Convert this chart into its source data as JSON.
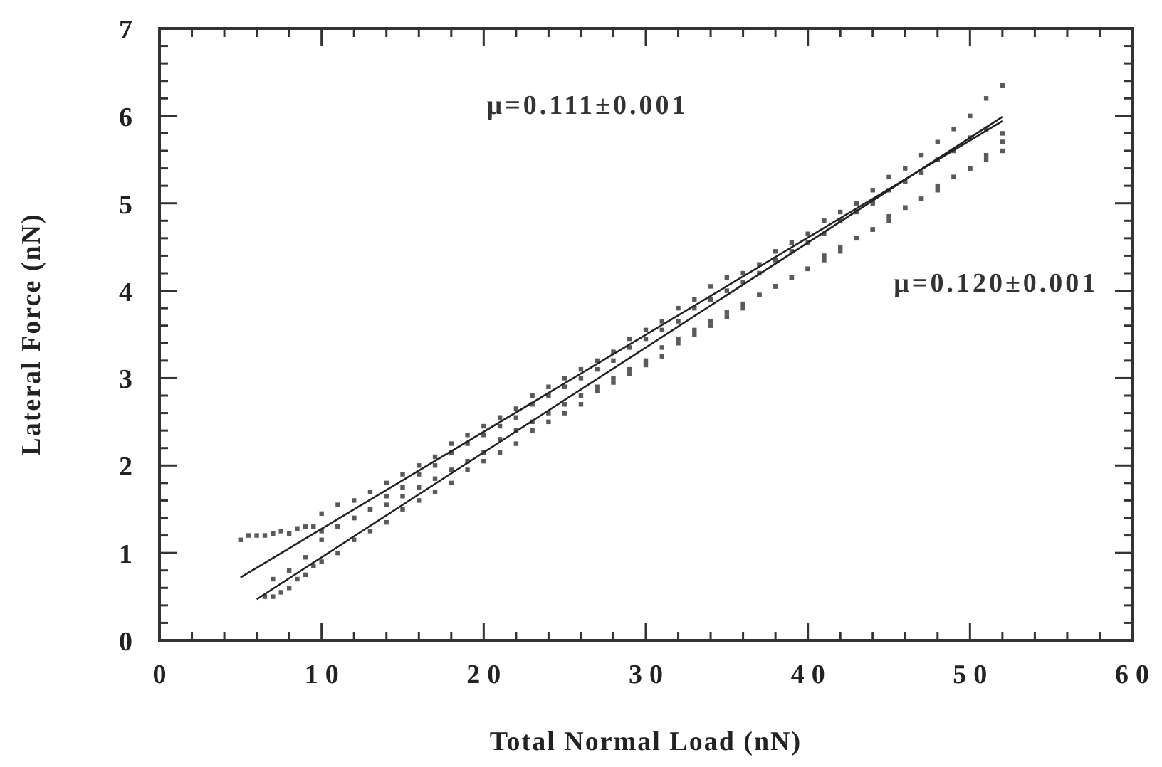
{
  "chart_data": {
    "type": "scatter",
    "xlabel": "Total Normal Load (nN)",
    "ylabel": "Lateral Force (nN)",
    "xlim": [
      0,
      60
    ],
    "ylim": [
      0,
      7
    ],
    "xticks": [
      0,
      10,
      20,
      30,
      40,
      50,
      60
    ],
    "yticks": [
      0,
      1,
      2,
      3,
      4,
      5,
      6,
      7
    ],
    "grid": false,
    "annotations": [
      "μ=0.111±0.001",
      "μ=0.120±0.001"
    ],
    "series": [
      {
        "color": "#5a5a5a",
        "marker": "square",
        "x": [
          5,
          5.5,
          6,
          6.5,
          7,
          7.5,
          8,
          8.5,
          9,
          9.5,
          10,
          10,
          11,
          11,
          12,
          12,
          13,
          13,
          14,
          14,
          15,
          15,
          16,
          16,
          17,
          17,
          18,
          18,
          19,
          19,
          20,
          20,
          21,
          21,
          22,
          22,
          23,
          23,
          24,
          24,
          25,
          25,
          26,
          26,
          27,
          27,
          28,
          28,
          29,
          29,
          30,
          30,
          31,
          31,
          32,
          32,
          33,
          33,
          34,
          34,
          35,
          35,
          36,
          36,
          37,
          37,
          38,
          38,
          39,
          39,
          40,
          40,
          41,
          41,
          42,
          42,
          43,
          43,
          44,
          44,
          45,
          45,
          46,
          46,
          47,
          47,
          48,
          48,
          49,
          49,
          50,
          50,
          51,
          51,
          52,
          52,
          52
        ],
        "values": [
          1.15,
          1.2,
          1.2,
          1.2,
          1.22,
          1.25,
          1.22,
          1.28,
          1.3,
          1.3,
          1.25,
          1.45,
          1.3,
          1.55,
          1.4,
          1.6,
          1.5,
          1.7,
          1.55,
          1.8,
          1.65,
          1.9,
          1.75,
          2.0,
          1.85,
          2.1,
          1.95,
          2.25,
          2.05,
          2.35,
          2.15,
          2.45,
          2.3,
          2.55,
          2.4,
          2.65,
          2.5,
          2.8,
          2.6,
          2.9,
          2.7,
          3.0,
          2.8,
          3.1,
          2.9,
          3.2,
          3.0,
          3.3,
          3.1,
          3.45,
          3.2,
          3.55,
          3.35,
          3.65,
          3.45,
          3.8,
          3.55,
          3.9,
          3.65,
          4.05,
          3.75,
          4.15,
          3.85,
          4.2,
          3.95,
          4.3,
          4.05,
          4.45,
          4.15,
          4.55,
          4.25,
          4.65,
          4.35,
          4.8,
          4.45,
          4.9,
          4.6,
          5.0,
          4.7,
          5.15,
          4.8,
          5.3,
          4.95,
          5.4,
          5.05,
          5.55,
          5.15,
          5.7,
          5.3,
          5.85,
          5.4,
          6.0,
          5.55,
          6.2,
          5.6,
          6.35,
          5.7
        ]
      },
      {
        "color": "#5a5a5a",
        "marker": "square",
        "x": [
          6.5,
          7,
          7,
          7.5,
          8,
          8,
          8.5,
          9,
          9,
          9.5,
          10,
          10,
          11,
          11,
          12,
          12,
          13,
          13,
          14,
          14,
          15,
          15,
          16,
          16,
          17,
          17,
          18,
          18,
          19,
          19,
          20,
          20,
          21,
          21,
          22,
          22,
          23,
          23,
          24,
          24,
          25,
          25,
          26,
          26,
          27,
          27,
          28,
          28,
          29,
          29,
          30,
          30,
          31,
          31,
          32,
          32,
          33,
          33,
          34,
          34,
          35,
          35,
          36,
          36,
          37,
          37,
          38,
          38,
          39,
          39,
          40,
          40,
          41,
          41,
          42,
          42,
          43,
          43,
          44,
          44,
          45,
          45,
          46,
          46,
          47,
          47,
          48,
          48,
          49,
          49,
          50,
          50,
          51,
          51,
          52,
          52
        ],
        "values": [
          0.5,
          0.5,
          0.7,
          0.55,
          0.6,
          0.8,
          0.7,
          0.75,
          0.95,
          0.85,
          0.9,
          1.15,
          1.0,
          1.3,
          1.15,
          1.4,
          1.25,
          1.5,
          1.35,
          1.65,
          1.5,
          1.75,
          1.6,
          1.9,
          1.7,
          2.0,
          1.8,
          2.15,
          1.95,
          2.25,
          2.05,
          2.35,
          2.15,
          2.45,
          2.25,
          2.55,
          2.4,
          2.7,
          2.5,
          2.8,
          2.6,
          2.9,
          2.7,
          3.0,
          2.85,
          3.1,
          2.95,
          3.2,
          3.05,
          3.35,
          3.15,
          3.45,
          3.25,
          3.55,
          3.4,
          3.65,
          3.5,
          3.8,
          3.6,
          3.9,
          3.7,
          4.0,
          3.8,
          4.1,
          3.95,
          4.2,
          4.05,
          4.35,
          4.15,
          4.45,
          4.25,
          4.55,
          4.4,
          4.65,
          4.5,
          4.8,
          4.6,
          4.9,
          4.7,
          5.0,
          4.85,
          5.15,
          4.95,
          5.25,
          5.05,
          5.35,
          5.2,
          5.5,
          5.3,
          5.6,
          5.4,
          5.75,
          5.5,
          5.85,
          5.7,
          5.8
        ]
      },
      {
        "type": "line",
        "color": "#222222",
        "x": [
          5,
          52
        ],
        "values": [
          0.72,
          5.94
        ]
      },
      {
        "type": "line",
        "color": "#222222",
        "x": [
          6,
          52
        ],
        "values": [
          0.47,
          5.99
        ]
      }
    ]
  }
}
